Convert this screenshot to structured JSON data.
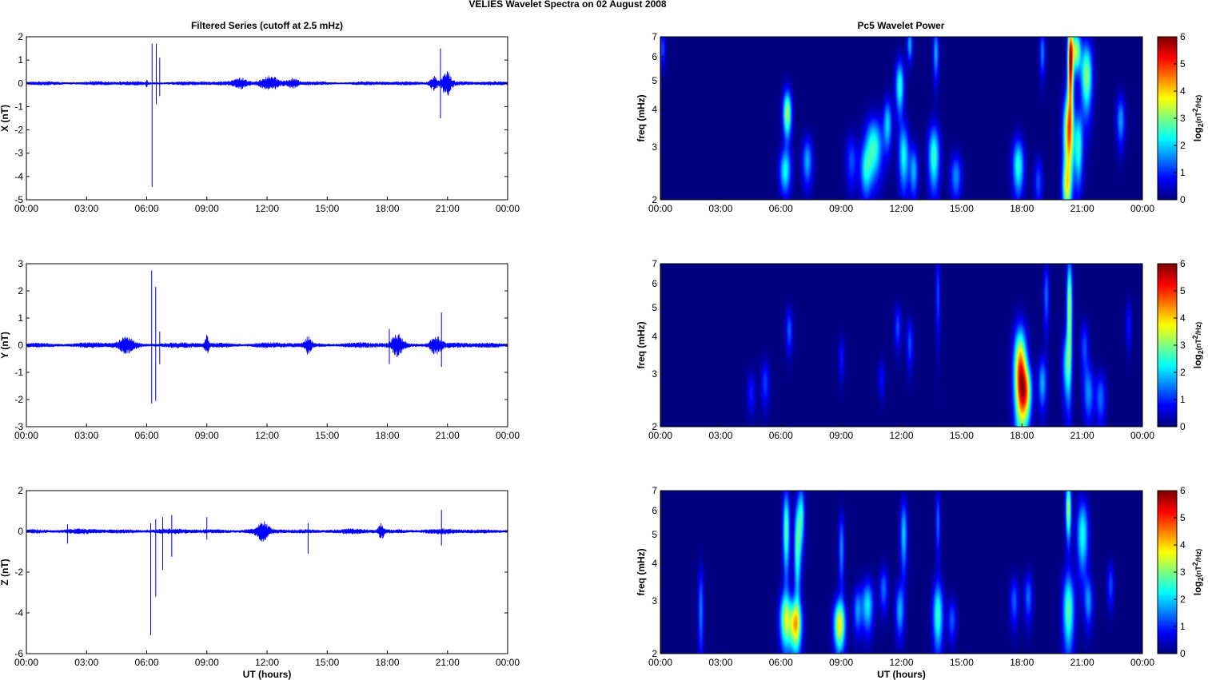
{
  "figure_title": "VELIES Wavelet Spectra on 02 August    2008",
  "left_column_title": "Filtered Series (cutoff at 2.5 mHz)",
  "right_column_title": "Pc5 Wavelet Power",
  "x_tick_labels": [
    "00:00",
    "03:00",
    "06:00",
    "09:00",
    "12:00",
    "15:00",
    "18:00",
    "21:00",
    "00:00"
  ],
  "x_axis_label": "UT (hours)",
  "freq_axis_label": "freq (mHz)",
  "colorbar_label": "log2(nT2/Hz)",
  "colorbar_ticks": [
    "0",
    "1",
    "2",
    "3",
    "4",
    "5",
    "6"
  ],
  "freq_tick_labels": [
    "2",
    "3",
    "4",
    "5",
    "6",
    "7"
  ],
  "colors": {
    "trace": "#0000ff",
    "axes": "#000000",
    "background": "#ffffff"
  },
  "chart_data": [
    {
      "type": "line",
      "component": "X",
      "ylabel": "X (nT)",
      "xlim": [
        0,
        24
      ],
      "ylim": [
        -5,
        2
      ],
      "yticks": [
        -5,
        -4,
        -3,
        -2,
        -1,
        0,
        1,
        2
      ],
      "noise_amplitude": 0.07,
      "events": [
        {
          "t": 6.0,
          "amp": 0.12,
          "dur": 0.05
        },
        {
          "t": 6.27,
          "min": -4.45,
          "max": 1.7
        },
        {
          "t": 6.48,
          "min": -0.9,
          "max": 1.7
        },
        {
          "t": 6.65,
          "min": -0.55,
          "max": 1.1
        },
        {
          "t": 10.7,
          "amp": 0.2,
          "dur": 0.4
        },
        {
          "t": 12.1,
          "amp": 0.25,
          "dur": 0.5
        },
        {
          "t": 13.3,
          "amp": 0.15,
          "dur": 0.3
        },
        {
          "t": 20.3,
          "amp": 0.3,
          "dur": 0.2
        },
        {
          "t": 20.65,
          "min": -1.5,
          "max": 1.5
        },
        {
          "t": 20.95,
          "amp": 0.5,
          "dur": 0.25
        }
      ]
    },
    {
      "type": "line",
      "component": "Y",
      "ylabel": "Y (nT)",
      "xlim": [
        0,
        24
      ],
      "ylim": [
        -3,
        3
      ],
      "yticks": [
        -3,
        -2,
        -1,
        0,
        1,
        2,
        3
      ],
      "noise_amplitude": 0.08,
      "events": [
        {
          "t": 5.0,
          "amp": 0.25,
          "dur": 0.4
        },
        {
          "t": 6.25,
          "min": -2.15,
          "max": 2.75
        },
        {
          "t": 6.45,
          "min": -2.05,
          "max": 2.15
        },
        {
          "t": 6.65,
          "min": -0.7,
          "max": 0.5
        },
        {
          "t": 9.0,
          "amp": 0.3,
          "dur": 0.1
        },
        {
          "t": 14.05,
          "amp": 0.3,
          "dur": 0.15
        },
        {
          "t": 18.1,
          "min": -0.7,
          "max": 0.6
        },
        {
          "t": 18.5,
          "amp": 0.35,
          "dur": 0.3
        },
        {
          "t": 20.7,
          "min": -0.8,
          "max": 1.2
        },
        {
          "t": 20.4,
          "amp": 0.3,
          "dur": 0.3
        }
      ]
    },
    {
      "type": "line",
      "component": "Z",
      "ylabel": "Z (nT)",
      "xlim": [
        0,
        24
      ],
      "ylim": [
        -6,
        2
      ],
      "yticks": [
        -6,
        -4,
        -2,
        0,
        2
      ],
      "noise_amplitude": 0.1,
      "events": [
        {
          "t": 2.05,
          "min": -0.6,
          "max": 0.35
        },
        {
          "t": 6.2,
          "min": -5.1,
          "max": 0.4
        },
        {
          "t": 6.45,
          "min": -3.2,
          "max": 0.6
        },
        {
          "t": 6.8,
          "min": -1.9,
          "max": 0.7
        },
        {
          "t": 7.25,
          "min": -1.25,
          "max": 0.8
        },
        {
          "t": 9.0,
          "min": -0.4,
          "max": 0.7
        },
        {
          "t": 11.8,
          "amp": 0.4,
          "dur": 0.3
        },
        {
          "t": 14.05,
          "min": -1.1,
          "max": 0.4
        },
        {
          "t": 17.7,
          "amp": 0.35,
          "dur": 0.15
        },
        {
          "t": 20.7,
          "min": -0.7,
          "max": 1.05
        }
      ]
    },
    {
      "type": "heatmap",
      "component": "X",
      "title": "Pc5 Wavelet Power",
      "ylabel": "freq (mHz)",
      "xlim": [
        0,
        24
      ],
      "ylim": [
        2,
        7
      ],
      "yscale": "log",
      "clim": [
        0,
        6
      ],
      "colormap": "jet",
      "colorbar_label": "log2(nT2/Hz)",
      "blobs": [
        {
          "t": 0.1,
          "f": 6.4,
          "dt": 0.1,
          "df": 0.6,
          "v": 1.2
        },
        {
          "t": 6.2,
          "f": 2.5,
          "dt": 0.2,
          "df": 0.3,
          "v": 2.3
        },
        {
          "t": 6.3,
          "f": 3.9,
          "dt": 0.15,
          "df": 0.5,
          "v": 3.3
        },
        {
          "t": 7.3,
          "f": 2.7,
          "dt": 0.18,
          "df": 0.35,
          "v": 1.8
        },
        {
          "t": 9.5,
          "f": 2.7,
          "dt": 0.2,
          "df": 0.4,
          "v": 1.2
        },
        {
          "t": 10.2,
          "f": 2.5,
          "dt": 0.2,
          "df": 0.35,
          "v": 1.8
        },
        {
          "t": 10.6,
          "f": 3.0,
          "dt": 0.3,
          "df": 0.5,
          "v": 2.6
        },
        {
          "t": 11.3,
          "f": 3.6,
          "dt": 0.15,
          "df": 0.5,
          "v": 2.0
        },
        {
          "t": 11.9,
          "f": 4.8,
          "dt": 0.15,
          "df": 0.7,
          "v": 2.5
        },
        {
          "t": 12.1,
          "f": 2.8,
          "dt": 0.18,
          "df": 0.5,
          "v": 2.3
        },
        {
          "t": 12.4,
          "f": 6.6,
          "dt": 0.1,
          "df": 0.6,
          "v": 1.8
        },
        {
          "t": 12.6,
          "f": 2.5,
          "dt": 0.15,
          "df": 0.35,
          "v": 1.8
        },
        {
          "t": 13.6,
          "f": 2.8,
          "dt": 0.2,
          "df": 0.5,
          "v": 2.6
        },
        {
          "t": 13.7,
          "f": 6.2,
          "dt": 0.1,
          "df": 0.9,
          "v": 1.8
        },
        {
          "t": 14.7,
          "f": 2.4,
          "dt": 0.2,
          "df": 0.3,
          "v": 1.6
        },
        {
          "t": 17.8,
          "f": 2.6,
          "dt": 0.2,
          "df": 0.4,
          "v": 2.5
        },
        {
          "t": 18.8,
          "f": 2.3,
          "dt": 0.15,
          "df": 0.3,
          "v": 1.2
        },
        {
          "t": 19.0,
          "f": 6.2,
          "dt": 0.1,
          "df": 0.8,
          "v": 1.5
        },
        {
          "t": 20.2,
          "f": 2.2,
          "dt": 0.15,
          "df": 0.3,
          "v": 2.4
        },
        {
          "t": 20.3,
          "f": 3.3,
          "dt": 0.18,
          "df": 0.8,
          "v": 4.3
        },
        {
          "t": 20.4,
          "f": 5.8,
          "dt": 0.1,
          "df": 1.3,
          "v": 5.8
        },
        {
          "t": 20.7,
          "f": 6.3,
          "dt": 0.15,
          "df": 0.7,
          "v": 3.2
        },
        {
          "t": 20.8,
          "f": 3.0,
          "dt": 0.15,
          "df": 0.6,
          "v": 2.5
        },
        {
          "t": 21.2,
          "f": 5.2,
          "dt": 0.2,
          "df": 1.0,
          "v": 3.1
        },
        {
          "t": 22.9,
          "f": 3.7,
          "dt": 0.15,
          "df": 0.5,
          "v": 1.7
        }
      ]
    },
    {
      "type": "heatmap",
      "component": "Y",
      "title": "",
      "ylabel": "freq (mHz)",
      "xlim": [
        0,
        24
      ],
      "ylim": [
        2,
        7
      ],
      "yscale": "log",
      "clim": [
        0,
        6
      ],
      "colormap": "jet",
      "colorbar_label": "log2(nT2/Hz)",
      "blobs": [
        {
          "t": 4.5,
          "f": 2.6,
          "dt": 0.15,
          "df": 0.3,
          "v": 0.9
        },
        {
          "t": 5.2,
          "f": 2.8,
          "dt": 0.15,
          "df": 0.35,
          "v": 1.1
        },
        {
          "t": 6.4,
          "f": 4.2,
          "dt": 0.12,
          "df": 0.5,
          "v": 1.3
        },
        {
          "t": 9.0,
          "f": 3.4,
          "dt": 0.1,
          "df": 0.4,
          "v": 0.9
        },
        {
          "t": 11.0,
          "f": 2.9,
          "dt": 0.12,
          "df": 0.3,
          "v": 0.8
        },
        {
          "t": 11.8,
          "f": 4.3,
          "dt": 0.12,
          "df": 0.5,
          "v": 1.2
        },
        {
          "t": 12.4,
          "f": 3.8,
          "dt": 0.12,
          "df": 0.5,
          "v": 1.2
        },
        {
          "t": 13.8,
          "f": 5.5,
          "dt": 0.08,
          "df": 1.2,
          "v": 1.2
        },
        {
          "t": 17.9,
          "f": 3.0,
          "dt": 0.22,
          "df": 0.8,
          "v": 5.0
        },
        {
          "t": 18.2,
          "f": 2.6,
          "dt": 0.2,
          "df": 0.4,
          "v": 3.2
        },
        {
          "t": 19.0,
          "f": 2.8,
          "dt": 0.15,
          "df": 0.4,
          "v": 1.8
        },
        {
          "t": 19.2,
          "f": 5.5,
          "dt": 0.1,
          "df": 1.0,
          "v": 1.4
        },
        {
          "t": 20.2,
          "f": 3.2,
          "dt": 0.15,
          "df": 0.6,
          "v": 2.0
        },
        {
          "t": 20.35,
          "f": 5.0,
          "dt": 0.1,
          "df": 1.5,
          "v": 3.3
        },
        {
          "t": 21.1,
          "f": 3.7,
          "dt": 0.15,
          "df": 0.5,
          "v": 1.2
        },
        {
          "t": 21.3,
          "f": 2.6,
          "dt": 0.18,
          "df": 0.4,
          "v": 1.6
        },
        {
          "t": 21.9,
          "f": 2.5,
          "dt": 0.18,
          "df": 0.35,
          "v": 1.4
        },
        {
          "t": 23.3,
          "f": 4.4,
          "dt": 0.1,
          "df": 0.6,
          "v": 0.9
        }
      ]
    },
    {
      "type": "heatmap",
      "component": "Z",
      "title": "",
      "ylabel": "freq (mHz)",
      "xlim": [
        0,
        24
      ],
      "ylim": [
        2,
        7
      ],
      "yscale": "log",
      "clim": [
        0,
        6
      ],
      "colormap": "jet",
      "colorbar_label": "log2(nT2/Hz)",
      "blobs": [
        {
          "t": 2.0,
          "f": 2.8,
          "dt": 0.1,
          "df": 0.7,
          "v": 1.5
        },
        {
          "t": 6.2,
          "f": 2.6,
          "dt": 0.2,
          "df": 0.4,
          "v": 3.0
        },
        {
          "t": 6.25,
          "f": 5.2,
          "dt": 0.12,
          "df": 1.2,
          "v": 2.8
        },
        {
          "t": 6.7,
          "f": 2.5,
          "dt": 0.22,
          "df": 0.35,
          "v": 3.8
        },
        {
          "t": 6.8,
          "f": 4.5,
          "dt": 0.12,
          "df": 1.2,
          "v": 2.6
        },
        {
          "t": 7.0,
          "f": 5.8,
          "dt": 0.12,
          "df": 1.0,
          "v": 2.2
        },
        {
          "t": 8.9,
          "f": 2.5,
          "dt": 0.2,
          "df": 0.35,
          "v": 3.8
        },
        {
          "t": 9.0,
          "f": 4.5,
          "dt": 0.1,
          "df": 0.9,
          "v": 1.6
        },
        {
          "t": 9.8,
          "f": 2.8,
          "dt": 0.15,
          "df": 0.35,
          "v": 1.6
        },
        {
          "t": 10.3,
          "f": 2.9,
          "dt": 0.2,
          "df": 0.4,
          "v": 2.2
        },
        {
          "t": 11.1,
          "f": 3.3,
          "dt": 0.15,
          "df": 0.4,
          "v": 1.4
        },
        {
          "t": 11.9,
          "f": 2.8,
          "dt": 0.15,
          "df": 0.4,
          "v": 1.8
        },
        {
          "t": 12.1,
          "f": 5.0,
          "dt": 0.12,
          "df": 1.0,
          "v": 2.0
        },
        {
          "t": 13.8,
          "f": 2.7,
          "dt": 0.18,
          "df": 0.5,
          "v": 2.6
        },
        {
          "t": 13.8,
          "f": 5.5,
          "dt": 0.08,
          "df": 1.0,
          "v": 1.4
        },
        {
          "t": 14.5,
          "f": 2.6,
          "dt": 0.15,
          "df": 0.3,
          "v": 1.3
        },
        {
          "t": 17.6,
          "f": 3.0,
          "dt": 0.15,
          "df": 0.4,
          "v": 1.3
        },
        {
          "t": 18.3,
          "f": 3.1,
          "dt": 0.15,
          "df": 0.4,
          "v": 1.4
        },
        {
          "t": 20.3,
          "f": 2.8,
          "dt": 0.2,
          "df": 0.6,
          "v": 2.8
        },
        {
          "t": 20.3,
          "f": 6.1,
          "dt": 0.1,
          "df": 1.0,
          "v": 3.3
        },
        {
          "t": 21.0,
          "f": 5.0,
          "dt": 0.2,
          "df": 1.0,
          "v": 2.4
        },
        {
          "t": 21.3,
          "f": 3.0,
          "dt": 0.15,
          "df": 0.4,
          "v": 1.6
        },
        {
          "t": 22.4,
          "f": 3.4,
          "dt": 0.12,
          "df": 0.4,
          "v": 1.2
        }
      ]
    }
  ]
}
